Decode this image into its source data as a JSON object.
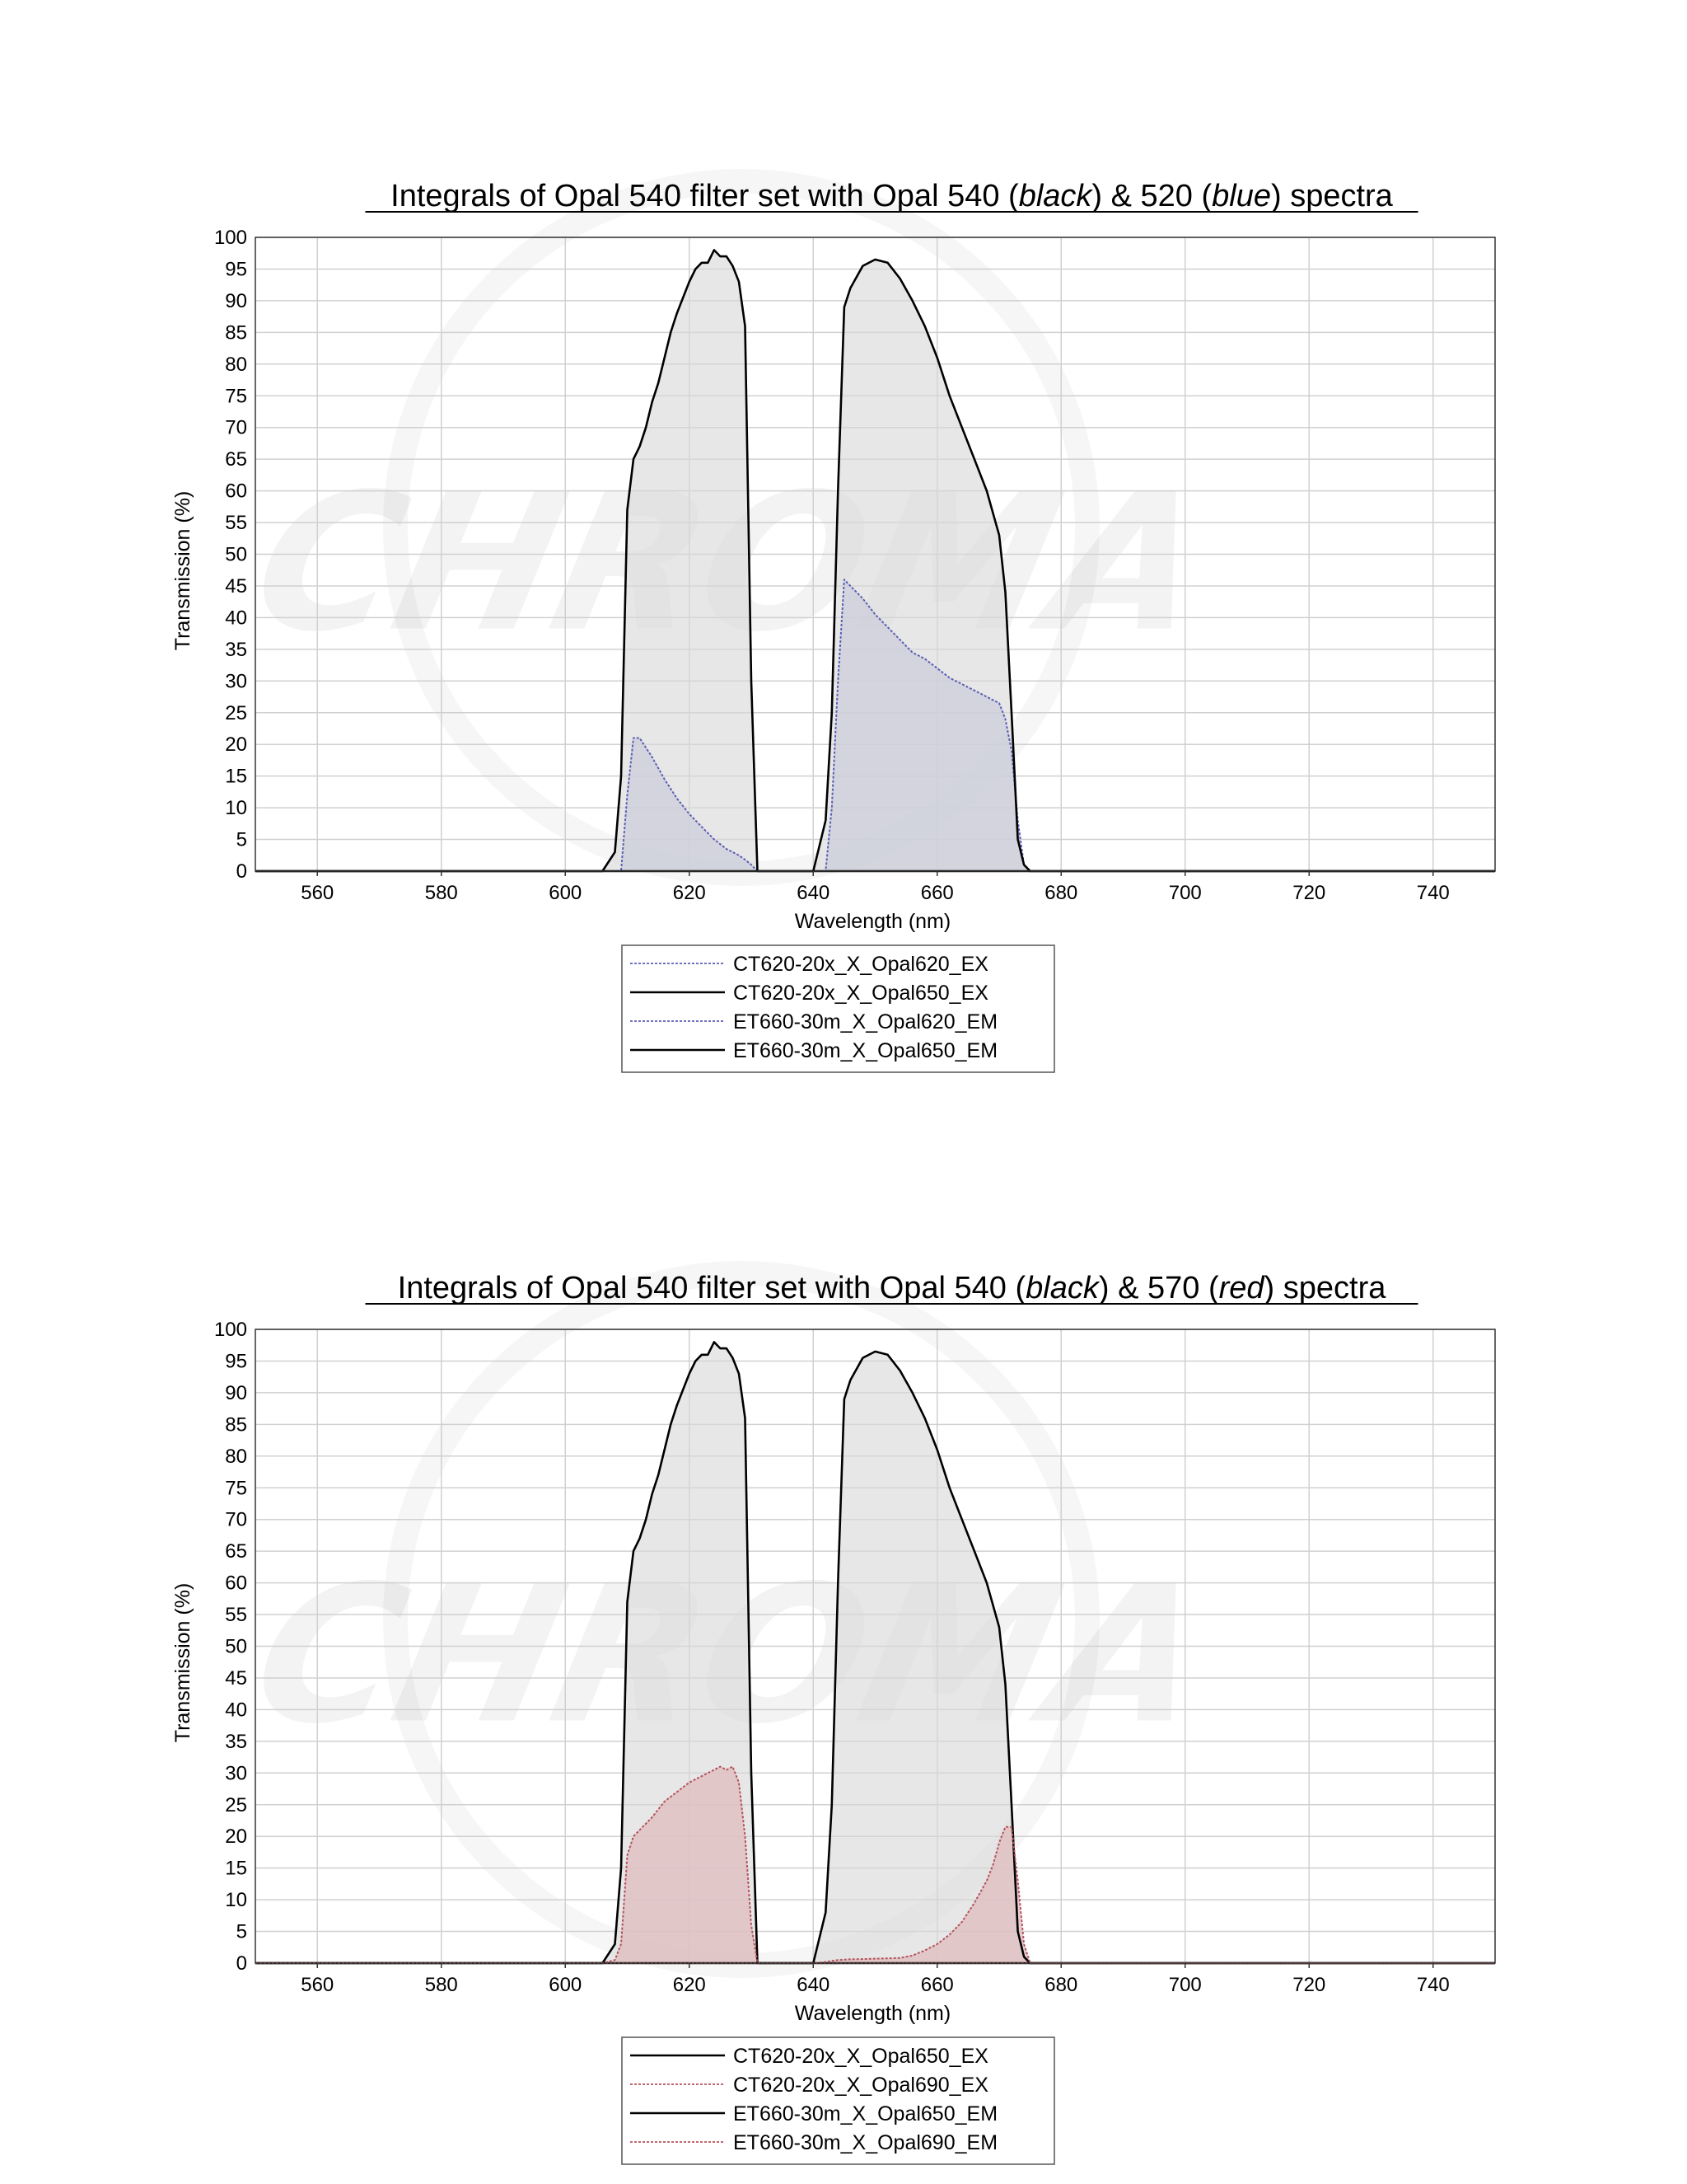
{
  "chart_data": [
    {
      "type": "area",
      "title": "Integrals of Opal 540 filter set with Opal 540 (black) & 520 (blue) spectra",
      "title_parts": [
        "Integrals of Opal 540 filter set with Opal 540 (",
        "black",
        ") & 520 (",
        "blue",
        ") spectra"
      ],
      "xlabel": "Wavelength (nm)",
      "ylabel": "Transmission (%)",
      "xlim": [
        550,
        750
      ],
      "ylim": [
        0,
        100
      ],
      "xticks": [
        560,
        580,
        600,
        620,
        640,
        660,
        680,
        700,
        720,
        740
      ],
      "yticks": [
        0,
        5,
        10,
        15,
        20,
        25,
        30,
        35,
        40,
        45,
        50,
        55,
        60,
        65,
        70,
        75,
        80,
        85,
        90,
        95,
        100
      ],
      "grid": true,
      "legend_position": "bottom-center",
      "watermark": "CHROMA",
      "series": [
        {
          "name": "CT620-20x_X_Opal620_EX",
          "color": "#5b5fb5",
          "fill": "#b9bedd",
          "style": "dotted",
          "x": [
            550,
            609,
            610,
            611,
            612,
            614,
            616,
            618,
            620,
            622,
            624,
            626,
            628,
            629,
            630,
            631,
            750
          ],
          "y": [
            0,
            0,
            12,
            21,
            21,
            18,
            14.5,
            11.5,
            9,
            7,
            5,
            3.5,
            2.5,
            1.8,
            1,
            0,
            0
          ]
        },
        {
          "name": "CT620-20x_X_Opal650_EX",
          "color": "#000000",
          "fill": "#d9d9d9",
          "style": "solid",
          "x": [
            550,
            606,
            608,
            609,
            610,
            611,
            612,
            613,
            614,
            615,
            616,
            617,
            618,
            619,
            620,
            621,
            622,
            623,
            624,
            625,
            626,
            627,
            628,
            629,
            630,
            631,
            750
          ],
          "y": [
            0,
            0,
            3,
            15,
            57,
            65,
            67,
            70,
            74,
            77,
            81,
            85,
            88,
            90.5,
            93,
            95,
            96,
            96,
            98,
            97,
            97,
            95.5,
            93,
            86,
            30,
            0,
            0
          ]
        },
        {
          "name": "ET660-30m_X_Opal620_EM",
          "color": "#5b5fb5",
          "fill": "#b9bedd",
          "style": "dotted",
          "x": [
            550,
            642,
            643,
            644,
            645,
            646,
            648,
            650,
            652,
            654,
            656,
            658,
            660,
            662,
            664,
            666,
            668,
            670,
            671,
            672,
            673,
            674,
            675,
            750
          ],
          "y": [
            0,
            0,
            10,
            30,
            46,
            45,
            43,
            40.5,
            38.5,
            36.5,
            34.5,
            33.5,
            32,
            30.5,
            29.5,
            28.5,
            27.5,
            26.5,
            24,
            19,
            8,
            1,
            0,
            0
          ]
        },
        {
          "name": "ET660-30m_X_Opal650_EM",
          "color": "#000000",
          "fill": "#d9d9d9",
          "style": "solid",
          "x": [
            550,
            640,
            642,
            643,
            644,
            645,
            646,
            648,
            650,
            652,
            654,
            656,
            658,
            660,
            662,
            664,
            666,
            668,
            670,
            671,
            672,
            673,
            674,
            675,
            750
          ],
          "y": [
            0,
            0,
            8,
            25,
            60,
            89,
            92,
            95.5,
            96.5,
            96,
            93.5,
            90,
            86,
            81,
            75,
            70,
            65,
            60,
            53,
            44,
            25,
            5,
            1,
            0,
            0
          ]
        }
      ]
    },
    {
      "type": "area",
      "title": "Integrals of Opal 540 filter set with Opal 540 (black) & 570 (red) spectra",
      "title_parts": [
        "Integrals of Opal 540 filter set with Opal 540 (",
        "black",
        ") & 570 (",
        "red",
        ") spectra"
      ],
      "xlabel": "Wavelength (nm)",
      "ylabel": "Transmission (%)",
      "xlim": [
        550,
        750
      ],
      "ylim": [
        0,
        100
      ],
      "xticks": [
        560,
        580,
        600,
        620,
        640,
        660,
        680,
        700,
        720,
        740
      ],
      "yticks": [
        0,
        5,
        10,
        15,
        20,
        25,
        30,
        35,
        40,
        45,
        50,
        55,
        60,
        65,
        70,
        75,
        80,
        85,
        90,
        95,
        100
      ],
      "grid": true,
      "legend_position": "bottom-center",
      "watermark": "CHROMA",
      "series": [
        {
          "name": "CT620-20x_X_Opal650_EX",
          "color": "#000000",
          "fill": "#d9d9d9",
          "style": "solid",
          "x": [
            550,
            606,
            608,
            609,
            610,
            611,
            612,
            613,
            614,
            615,
            616,
            617,
            618,
            619,
            620,
            621,
            622,
            623,
            624,
            625,
            626,
            627,
            628,
            629,
            630,
            631,
            750
          ],
          "y": [
            0,
            0,
            3,
            15,
            57,
            65,
            67,
            70,
            74,
            77,
            81,
            85,
            88,
            90.5,
            93,
            95,
            96,
            96,
            98,
            97,
            97,
            95.5,
            93,
            86,
            30,
            0,
            0
          ]
        },
        {
          "name": "CT620-20x_X_Opal690_EX",
          "color": "#b5545b",
          "fill": "#e0bcbf",
          "style": "dotted",
          "x": [
            550,
            606,
            608,
            609,
            610,
            611,
            612,
            614,
            616,
            618,
            620,
            622,
            624,
            625,
            626,
            627,
            628,
            629,
            630,
            631,
            750
          ],
          "y": [
            0,
            0,
            0.5,
            3,
            17,
            20,
            21,
            23,
            25.5,
            27,
            28.5,
            29.5,
            30.5,
            31,
            30.5,
            31,
            28.5,
            20,
            6,
            0,
            0
          ]
        },
        {
          "name": "ET660-30m_X_Opal650_EM",
          "color": "#000000",
          "fill": "#d9d9d9",
          "style": "solid",
          "x": [
            550,
            640,
            642,
            643,
            644,
            645,
            646,
            648,
            650,
            652,
            654,
            656,
            658,
            660,
            662,
            664,
            666,
            668,
            670,
            671,
            672,
            673,
            674,
            675,
            750
          ],
          "y": [
            0,
            0,
            8,
            25,
            60,
            89,
            92,
            95.5,
            96.5,
            96,
            93.5,
            90,
            86,
            81,
            75,
            70,
            65,
            60,
            53,
            44,
            25,
            5,
            1,
            0,
            0
          ]
        },
        {
          "name": "ET660-30m_X_Opal690_EM",
          "color": "#b5545b",
          "fill": "#e0bcbf",
          "style": "dotted",
          "x": [
            550,
            640,
            642,
            644,
            646,
            650,
            654,
            656,
            658,
            660,
            662,
            664,
            666,
            668,
            669,
            670,
            671,
            672,
            673,
            674,
            675,
            750
          ],
          "y": [
            0,
            0,
            0.2,
            0.5,
            0.6,
            0.7,
            0.8,
            1.2,
            2,
            3,
            4.5,
            6.5,
            9.5,
            13,
            15.5,
            19,
            21.5,
            21.5,
            13,
            3,
            0,
            0
          ]
        }
      ]
    }
  ]
}
